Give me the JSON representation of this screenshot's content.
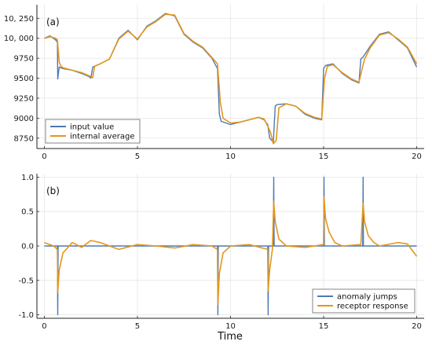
{
  "chart_data": [
    {
      "type": "line",
      "panel_label": "(a)",
      "xlim": [
        -0.4,
        20.4
      ],
      "ylim": [
        8620,
        10420
      ],
      "x_ticks": [
        0,
        5,
        10,
        15,
        20
      ],
      "y_ticks": [
        8750,
        9000,
        9250,
        9500,
        9750,
        10000,
        10250
      ],
      "y_tick_labels": [
        "8750",
        "9000",
        "9250",
        "9500",
        "9750",
        "10, 000",
        "10, 250"
      ],
      "grid": true,
      "legend_position": "bottom-left",
      "series": [
        {
          "name": "input value",
          "color": "#4d79b4",
          "x": [
            0,
            0.3,
            0.6,
            0.7,
            0.72,
            0.8,
            1,
            1.5,
            2,
            2.4,
            2.5,
            2.6,
            3,
            3.5,
            4,
            4.5,
            5,
            5.5,
            6,
            6.5,
            7,
            7.5,
            8,
            8.5,
            9,
            9.3,
            9.4,
            9.5,
            10,
            10.5,
            11,
            11.5,
            11.8,
            12,
            12.1,
            12.3,
            12.4,
            12.5,
            13,
            13.5,
            14,
            14.5,
            14.9,
            15,
            15.1,
            15.5,
            16,
            16.5,
            16.9,
            17,
            17.1,
            17.5,
            18,
            18.5,
            19,
            19.5,
            20
          ],
          "y": [
            10000,
            10030,
            9980,
            9950,
            9490,
            9640,
            9620,
            9600,
            9560,
            9520,
            9500,
            9640,
            9680,
            9740,
            10000,
            10100,
            9980,
            10150,
            10220,
            10310,
            10280,
            10050,
            9950,
            9880,
            9750,
            9620,
            9050,
            8960,
            8920,
            8950,
            8980,
            9010,
            8980,
            8920,
            8750,
            8700,
            9150,
            9170,
            9180,
            9150,
            9050,
            9000,
            8980,
            9620,
            9660,
            9680,
            9560,
            9480,
            9440,
            9740,
            9760,
            9900,
            10050,
            10080,
            9980,
            9880,
            9640
          ]
        },
        {
          "name": "internal average",
          "color": "#e3961e",
          "x": [
            0,
            0.3,
            0.6,
            0.7,
            0.8,
            0.9,
            1,
            1.5,
            2,
            2.4,
            2.6,
            2.7,
            3,
            3.5,
            4,
            4.5,
            5,
            5.5,
            6,
            6.5,
            7,
            7.5,
            8,
            8.5,
            9,
            9.3,
            9.45,
            9.6,
            10,
            10.5,
            11,
            11.5,
            11.8,
            12,
            12.15,
            12.3,
            12.45,
            12.6,
            13,
            13.5,
            14,
            14.5,
            14.9,
            15.05,
            15.2,
            15.5,
            16,
            16.5,
            16.9,
            17.05,
            17.2,
            17.5,
            18,
            18.5,
            19,
            19.5,
            20
          ],
          "y": [
            10000,
            10020,
            10000,
            9980,
            9700,
            9650,
            9630,
            9600,
            9570,
            9530,
            9510,
            9650,
            9680,
            9740,
            9990,
            10090,
            9990,
            10140,
            10210,
            10300,
            10290,
            10060,
            9960,
            9890,
            9760,
            9680,
            9200,
            9000,
            8940,
            8950,
            8980,
            9010,
            8990,
            8900,
            8820,
            8680,
            8720,
            9130,
            9180,
            9150,
            9060,
            9010,
            8990,
            9500,
            9650,
            9670,
            9570,
            9490,
            9450,
            9600,
            9740,
            9880,
            10040,
            10070,
            9990,
            9890,
            9680
          ]
        }
      ]
    },
    {
      "type": "line",
      "panel_label": "(b)",
      "xlim": [
        -0.4,
        20.4
      ],
      "ylim": [
        -1.05,
        1.05
      ],
      "x_ticks": [
        0,
        5,
        10,
        15,
        20
      ],
      "y_ticks": [
        -1.0,
        -0.5,
        0.0,
        0.5,
        1.0
      ],
      "y_tick_labels": [
        "-1.0",
        "-0.5",
        "0.0",
        "0.5",
        "1.0"
      ],
      "xlabel": "Time",
      "grid": true,
      "legend_position": "bottom-right",
      "series": [
        {
          "name": "anomaly jumps",
          "color": "#4d79b4",
          "x": [
            0,
            0.7,
            0.72,
            0.74,
            9.3,
            9.32,
            9.34,
            12.0,
            12.02,
            12.04,
            12.3,
            12.32,
            12.34,
            15.0,
            15.02,
            15.04,
            17.1,
            17.12,
            17.14,
            20
          ],
          "y": [
            0,
            0,
            -1.0,
            0,
            0,
            -1.0,
            0,
            0,
            -1.0,
            0,
            0,
            1.0,
            0,
            0,
            1.0,
            0,
            0,
            1.0,
            0,
            0
          ]
        },
        {
          "name": "receptor response",
          "color": "#e3961e",
          "x": [
            0,
            0.5,
            0.7,
            0.72,
            0.8,
            1,
            1.5,
            2,
            2.5,
            3,
            3.5,
            4,
            5,
            6,
            7,
            8,
            9,
            9.3,
            9.32,
            9.4,
            9.6,
            10,
            11,
            12,
            12.02,
            12.1,
            12.25,
            12.32,
            12.4,
            12.6,
            13,
            14,
            15,
            15.02,
            15.1,
            15.3,
            15.6,
            16,
            17,
            17.12,
            17.2,
            17.4,
            17.7,
            18,
            19,
            19.5,
            20
          ],
          "y": [
            0.05,
            0.0,
            -0.05,
            -0.68,
            -0.35,
            -0.1,
            0.05,
            -0.02,
            0.08,
            0.05,
            0.0,
            -0.05,
            0.02,
            0.0,
            -0.03,
            0.02,
            0.0,
            -0.05,
            -0.85,
            -0.4,
            -0.1,
            0.0,
            0.02,
            -0.05,
            -0.65,
            -0.35,
            -0.05,
            0.65,
            0.35,
            0.1,
            0.0,
            -0.02,
            0.02,
            0.72,
            0.4,
            0.2,
            0.05,
            0.0,
            0.02,
            0.62,
            0.35,
            0.15,
            0.05,
            0.0,
            0.05,
            0.03,
            -0.15
          ]
        }
      ]
    }
  ]
}
